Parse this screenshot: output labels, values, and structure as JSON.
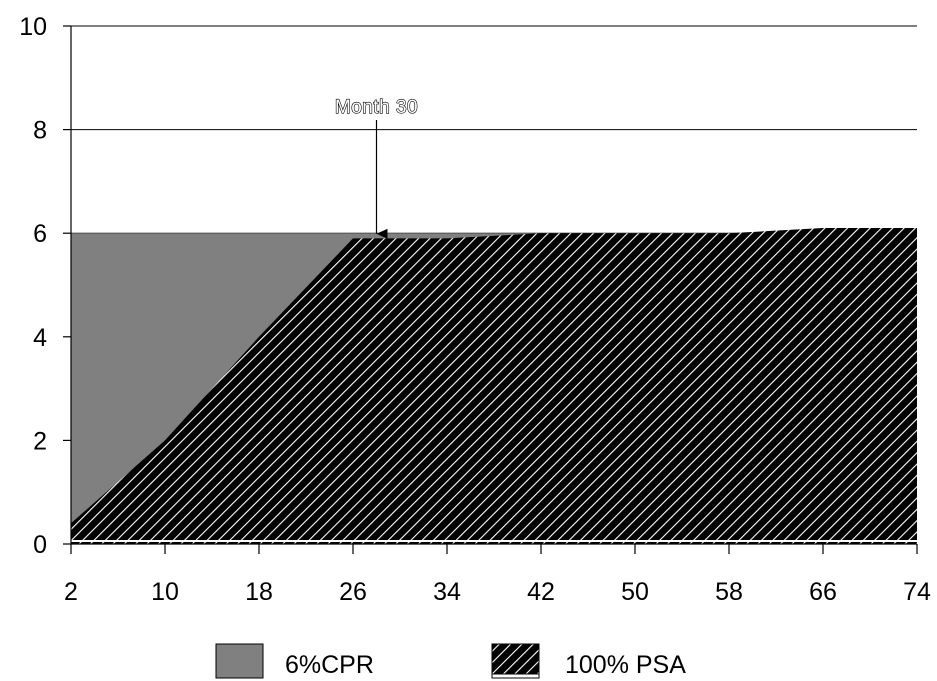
{
  "chart_data": {
    "type": "area",
    "title": "",
    "xlabel": "",
    "ylabel": "",
    "xlim": [
      2,
      74
    ],
    "ylim": [
      0,
      10
    ],
    "x_ticks": [
      2,
      10,
      18,
      26,
      34,
      42,
      50,
      58,
      66,
      74
    ],
    "y_ticks": [
      0,
      2,
      4,
      6,
      8,
      10
    ],
    "grid": "horizontal",
    "legend_placement": "bottom",
    "series": [
      {
        "name": "6%CPR",
        "color": "#808080",
        "pattern": "solid",
        "x": [
          2,
          74
        ],
        "y": [
          6,
          6
        ]
      },
      {
        "name": "100% PSA",
        "color": "#000000",
        "pattern": "diagonal-hatch",
        "x": [
          2,
          10,
          18,
          26,
          34,
          42,
          50,
          58,
          66,
          74
        ],
        "y": [
          0.4,
          2.0,
          4.0,
          5.9,
          5.9,
          6.0,
          6.0,
          6.0,
          6.1,
          6.1
        ]
      }
    ],
    "annotations": [
      {
        "text": "Month 30",
        "x": 28,
        "y": 5.95
      }
    ]
  }
}
